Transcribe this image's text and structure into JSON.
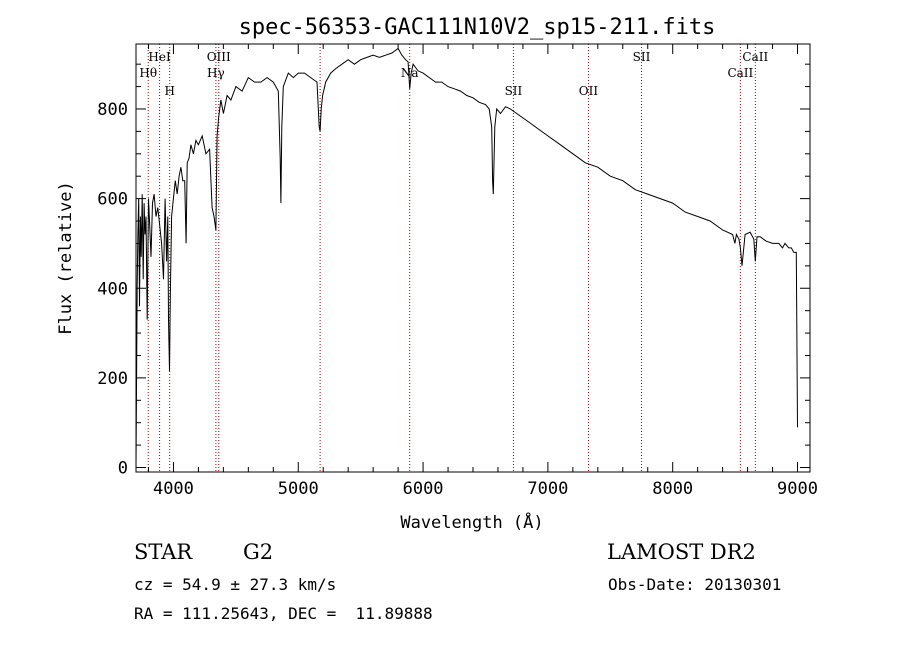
{
  "chart_data": {
    "type": "line",
    "title": "spec-56353-GAC111N10V2_sp15-211.fits",
    "xlabel": "Wavelength (Å)",
    "ylabel": "Flux (relative)",
    "xlim": [
      3700,
      9100
    ],
    "ylim": [
      -10,
      945
    ],
    "xticks": [
      4000,
      5000,
      6000,
      7000,
      8000,
      9000
    ],
    "yticks": [
      0,
      200,
      400,
      600,
      800
    ],
    "grid": false,
    "series": [
      {
        "x": [
          3700,
          3710,
          3715,
          3722,
          3728,
          3735,
          3742,
          3750,
          3758,
          3765,
          3772,
          3780,
          3790,
          3800,
          3810,
          3820,
          3832,
          3845,
          3860,
          3875,
          3890,
          3905,
          3920,
          3933,
          3945,
          3955,
          3960,
          3968,
          3975,
          3985,
          4000,
          4015,
          4030,
          4045,
          4060,
          4075,
          4090,
          4101,
          4110,
          4125,
          4140,
          4160,
          4180,
          4200,
          4230,
          4260,
          4290,
          4310,
          4325,
          4340,
          4350,
          4362,
          4380,
          4400,
          4430,
          4460,
          4500,
          4550,
          4600,
          4650,
          4700,
          4750,
          4800,
          4840,
          4855,
          4861,
          4868,
          4880,
          4920,
          4960,
          5000,
          5050,
          5100,
          5150,
          5168,
          5175,
          5184,
          5195,
          5220,
          5260,
          5300,
          5350,
          5400,
          5450,
          5500,
          5550,
          5600,
          5650,
          5700,
          5750,
          5800,
          5830,
          5860,
          5880,
          5893,
          5905,
          5920,
          5960,
          6000,
          6050,
          6100,
          6150,
          6200,
          6250,
          6300,
          6350,
          6400,
          6450,
          6500,
          6530,
          6550,
          6557,
          6563,
          6568,
          6575,
          6590,
          6620,
          6660,
          6700,
          6750,
          6800,
          6850,
          6900,
          6950,
          7000,
          7100,
          7200,
          7300,
          7400,
          7500,
          7600,
          7700,
          7800,
          7900,
          8000,
          8100,
          8200,
          8300,
          8400,
          8480,
          8498,
          8510,
          8530,
          8542,
          8555,
          8580,
          8620,
          8650,
          8662,
          8675,
          8700,
          8750,
          8800,
          8850,
          8880,
          8900,
          8930,
          8950,
          8970,
          8990,
          9000
        ],
        "y": [
          0,
          410,
          520,
          600,
          360,
          560,
          470,
          610,
          420,
          590,
          520,
          560,
          330,
          600,
          540,
          470,
          590,
          610,
          560,
          580,
          540,
          500,
          420,
          600,
          460,
          560,
          330,
          215,
          380,
          560,
          600,
          640,
          610,
          650,
          670,
          640,
          640,
          500,
          680,
          690,
          720,
          700,
          730,
          720,
          740,
          700,
          710,
          580,
          560,
          530,
          740,
          780,
          820,
          790,
          830,
          820,
          850,
          840,
          870,
          860,
          860,
          870,
          860,
          840,
          690,
          590,
          760,
          850,
          880,
          870,
          880,
          880,
          870,
          860,
          760,
          750,
          800,
          830,
          860,
          880,
          890,
          900,
          910,
          900,
          910,
          915,
          920,
          915,
          920,
          925,
          935,
          920,
          910,
          905,
          845,
          880,
          900,
          885,
          880,
          870,
          860,
          860,
          850,
          845,
          840,
          830,
          825,
          815,
          810,
          800,
          760,
          640,
          610,
          680,
          760,
          800,
          790,
          805,
          800,
          790,
          780,
          770,
          760,
          750,
          740,
          720,
          700,
          680,
          670,
          650,
          640,
          620,
          610,
          600,
          590,
          570,
          560,
          550,
          530,
          520,
          500,
          520,
          510,
          490,
          450,
          520,
          525,
          510,
          460,
          515,
          515,
          505,
          500,
          500,
          490,
          500,
          490,
          490,
          480,
          480,
          90
        ]
      }
    ],
    "lines": [
      {
        "x": 3798,
        "label": "Hθ",
        "row": 2
      },
      {
        "x": 3889,
        "label": "HeI",
        "row": 1
      },
      {
        "x": 3970,
        "label": "H",
        "row": 3
      },
      {
        "x": 4340,
        "label": "Hγ",
        "row": 2
      },
      {
        "x": 4363,
        "label": "OIII",
        "row": 1
      },
      {
        "x": 5175,
        "label": "",
        "row": 1
      },
      {
        "x": 5893,
        "label": "Na",
        "row": 2
      },
      {
        "x": 6724,
        "label": "SII",
        "row": 3
      },
      {
        "x": 7325,
        "label": "OII",
        "row": 3
      },
      {
        "x": 7750,
        "label": "SII",
        "row": 1
      },
      {
        "x": 8542,
        "label": "CaII",
        "row": 2
      },
      {
        "x": 8662,
        "label": "CaII",
        "row": 1
      }
    ]
  },
  "info": {
    "object_class": "STAR",
    "subclass": "G2",
    "survey": "LAMOST DR2",
    "cz": "cz = 54.9 ± 27.3 km/s",
    "obs_date": "Obs-Date: 20130301",
    "coords": "RA = 111.25643, DEC =  11.89888"
  }
}
